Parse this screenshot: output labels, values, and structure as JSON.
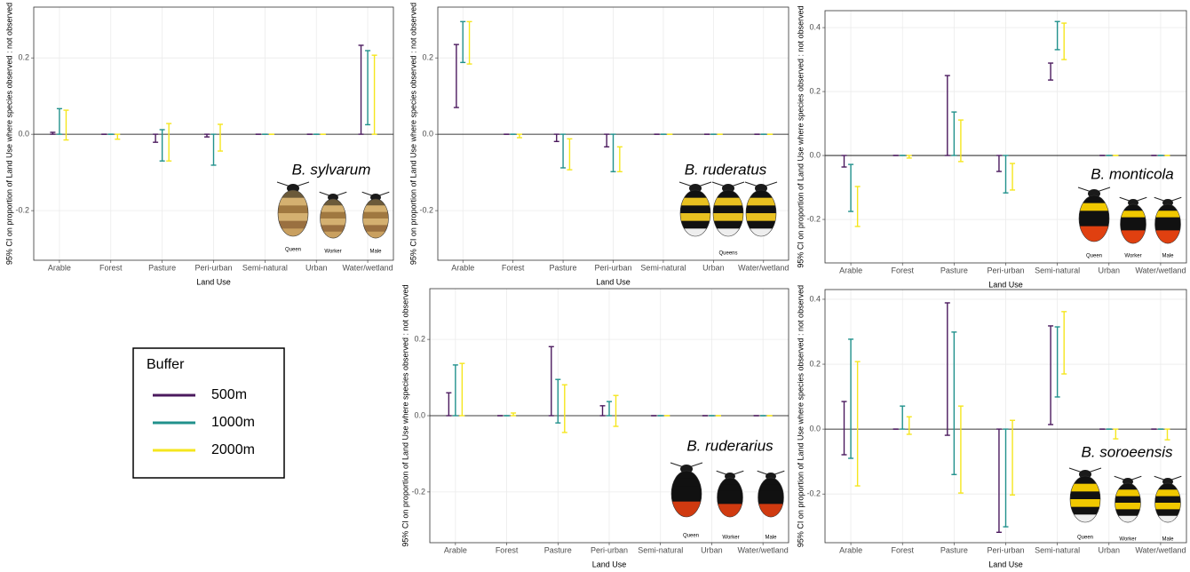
{
  "legend": {
    "title": "Buffer",
    "series": [
      {
        "name": "500m",
        "color": "#4b1a5e"
      },
      {
        "name": "1000m",
        "color": "#21918c"
      },
      {
        "name": "2000m",
        "color": "#f5e61e"
      }
    ]
  },
  "chart_data": [
    {
      "type": "errorbar",
      "title": "B. sylvarum",
      "xlabel": "Land Use",
      "ylabel": "95% CI on proportion of Land Use where species observed : not observed",
      "categories": [
        "Arable",
        "Forest",
        "Pasture",
        "Peri-urban",
        "Semi-natural",
        "Urban",
        "Water/wetland"
      ],
      "series": [
        {
          "low": [
            0,
            0,
            -0.021,
            -0.007,
            0,
            0,
            0
          ],
          "high": [
            0.005,
            0,
            0,
            0,
            0,
            0,
            0.233
          ]
        },
        {
          "low": [
            0,
            0,
            -0.07,
            -0.081,
            0,
            0,
            0.025
          ],
          "high": [
            0.067,
            0,
            0.012,
            0,
            0,
            0,
            0.219
          ]
        },
        {
          "low": [
            -0.015,
            -0.013,
            -0.07,
            -0.044,
            0,
            0,
            0
          ],
          "high": [
            0.063,
            0,
            0.028,
            0.026,
            0,
            0,
            0.207
          ]
        }
      ],
      "ylim": [
        -0.33,
        0.333
      ],
      "yticks": [
        -0.2,
        {
          "value": 0,
          "label": "0.0"
        },
        0.2
      ],
      "grid": true,
      "image_captions": [
        "Queen",
        "Worker",
        "Male"
      ]
    },
    {
      "type": "errorbar",
      "title": "B. ruderatus",
      "xlabel": "Land Use",
      "ylabel": "95% CI on proportion of Land Use where species observed : not observed",
      "categories": [
        "Arable",
        "Forest",
        "Pasture",
        "Peri-urban",
        "Semi-natural",
        "Urban",
        "Water/wetland"
      ],
      "series": [
        {
          "low": [
            0.07,
            0,
            -0.019,
            -0.033,
            0,
            0,
            0
          ],
          "high": [
            0.235,
            0,
            0,
            0,
            0,
            0,
            0
          ]
        },
        {
          "low": [
            0.188,
            0,
            -0.088,
            -0.098,
            0,
            0,
            0
          ],
          "high": [
            0.295,
            0,
            0,
            0,
            0,
            0,
            0
          ]
        },
        {
          "low": [
            0.184,
            -0.009,
            -0.093,
            -0.098,
            0,
            0,
            0
          ],
          "high": [
            0.295,
            0,
            -0.012,
            -0.033,
            0,
            0,
            0
          ]
        }
      ],
      "ylim": [
        -0.33,
        0.333
      ],
      "yticks": [
        -0.2,
        {
          "value": 0,
          "label": "0.0"
        },
        0.2
      ],
      "grid": true,
      "image_captions": [
        "Queens"
      ]
    },
    {
      "type": "errorbar",
      "title": "B. monticola",
      "xlabel": "Land Use",
      "ylabel": "95% CI on proportion of Land Use where species observed : not observed",
      "categories": [
        "Arable",
        "Forest",
        "Pasture",
        "Peri-urban",
        "Semi-natural",
        "Urban",
        "Water/wetland"
      ],
      "series": [
        {
          "low": [
            -0.036,
            0,
            0,
            -0.05,
            0.236,
            0,
            0
          ],
          "high": [
            0,
            0,
            0.25,
            0,
            0.289,
            0,
            0
          ]
        },
        {
          "low": [
            -0.175,
            0,
            0,
            -0.117,
            0.331,
            0,
            0
          ],
          "high": [
            -0.028,
            0,
            0.136,
            0,
            0.419,
            0,
            0
          ]
        },
        {
          "low": [
            -0.222,
            -0.008,
            -0.019,
            -0.108,
            0.3,
            0,
            0
          ],
          "high": [
            -0.097,
            0,
            0.111,
            -0.025,
            0.414,
            0,
            0
          ]
        }
      ],
      "ylim": [
        -0.336,
        0.453
      ],
      "yticks": [
        -0.2,
        {
          "value": 0,
          "label": "0.0"
        },
        0.2,
        0.4
      ],
      "grid": true,
      "image_captions": [
        "Queen",
        "Worker",
        "Male"
      ]
    },
    {
      "type": "errorbar",
      "title": "B. ruderarius",
      "xlabel": "Land Use",
      "ylabel": "95% CI on proportion of Land Use where species observed : not observed",
      "categories": [
        "Arable",
        "Forest",
        "Pasture",
        "Peri-urban",
        "Semi-natural",
        "Urban",
        "Water/wetland"
      ],
      "series": [
        {
          "low": [
            0,
            0,
            0,
            0,
            0,
            0,
            0
          ],
          "high": [
            0.06,
            0,
            0.181,
            0.026,
            0,
            0,
            0
          ]
        },
        {
          "low": [
            0,
            0,
            -0.019,
            0,
            0,
            0,
            0
          ],
          "high": [
            0.133,
            0,
            0.095,
            0.037,
            0,
            0,
            0
          ]
        },
        {
          "low": [
            0,
            0,
            -0.044,
            -0.028,
            0,
            0,
            0
          ],
          "high": [
            0.137,
            0.007,
            0.081,
            0.053,
            0,
            0,
            0
          ]
        }
      ],
      "ylim": [
        -0.333,
        0.333
      ],
      "yticks": [
        -0.2,
        {
          "value": 0,
          "label": "0.0"
        },
        0.2
      ],
      "grid": true,
      "image_captions": [
        "Queen",
        "Worker",
        "Male"
      ]
    },
    {
      "type": "errorbar",
      "title": "B. soroeensis",
      "xlabel": "Land Use",
      "ylabel": "95% CI on proportion of Land Use where species observed : not observed",
      "categories": [
        "Arable",
        "Forest",
        "Pasture",
        "Peri-urban",
        "Semi-natural",
        "Urban",
        "Water/wetland"
      ],
      "series": [
        {
          "low": [
            -0.079,
            0,
            -0.019,
            -0.318,
            0.014,
            0,
            0
          ],
          "high": [
            0.085,
            0,
            0.389,
            0,
            0.318,
            0,
            0
          ]
        },
        {
          "low": [
            -0.09,
            0,
            -0.14,
            -0.301,
            0.099,
            0,
            0
          ],
          "high": [
            0.277,
            0.071,
            0.299,
            0,
            0.315,
            0,
            0
          ]
        },
        {
          "low": [
            -0.175,
            -0.016,
            -0.197,
            -0.203,
            0.17,
            -0.03,
            -0.033
          ],
          "high": [
            0.208,
            0.038,
            0.071,
            0.027,
            0.362,
            0,
            0
          ]
        }
      ],
      "ylim": [
        -0.35,
        0.43
      ],
      "yticks": [
        -0.2,
        {
          "value": 0,
          "label": "0.0"
        },
        0.2,
        0.4
      ],
      "grid": true,
      "image_captions": [
        "Queen",
        "Worker",
        "Male"
      ]
    }
  ]
}
